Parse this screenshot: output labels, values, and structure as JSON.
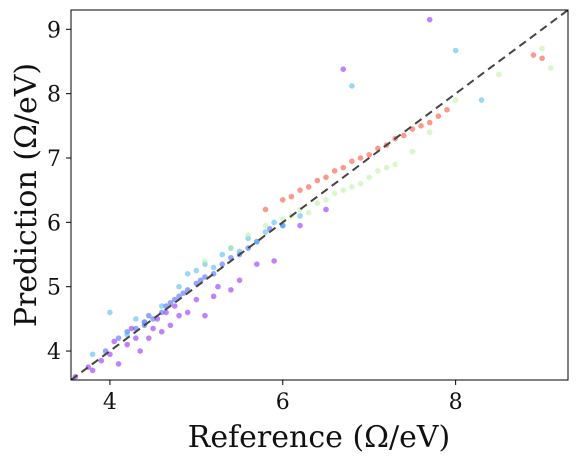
{
  "chart_data": {
    "type": "scatter",
    "title": "",
    "xlabel": "Reference (Ω/eV)",
    "ylabel": "Prediction (Ω/eV)",
    "xlim": [
      3.55,
      9.3
    ],
    "ylim": [
      3.55,
      9.3
    ],
    "xticks": [
      "4",
      "6",
      "8"
    ],
    "yticks": [
      "4",
      "5",
      "6",
      "7",
      "8",
      "9"
    ],
    "grid": false,
    "legend": "none",
    "reference_line": {
      "style": "dashed",
      "color": "#444444",
      "x": [
        3.55,
        9.3
      ],
      "y": [
        3.55,
        9.3
      ]
    },
    "colors": {
      "marker_alpha": 0.55
    },
    "series": [
      {
        "color": "#8b1cf5",
        "x": [
          3.6,
          3.75,
          3.8,
          3.9,
          4.0,
          4.05,
          4.1,
          4.2,
          4.25,
          4.3,
          4.35,
          4.4,
          4.45,
          4.5,
          4.55,
          4.6,
          4.65,
          4.7,
          4.75,
          4.8,
          4.9,
          5.0,
          5.1,
          5.2,
          5.25,
          5.4,
          5.5,
          5.7,
          5.9,
          6.2,
          6.5,
          6.7,
          7.7
        ],
        "y": [
          3.6,
          3.75,
          3.7,
          3.85,
          3.95,
          4.15,
          3.8,
          4.1,
          4.35,
          4.2,
          4.0,
          4.45,
          4.2,
          4.35,
          4.5,
          4.3,
          4.6,
          4.4,
          4.7,
          4.55,
          4.6,
          4.8,
          4.55,
          4.85,
          5.0,
          4.95,
          5.1,
          5.35,
          5.4,
          5.95,
          6.2,
          8.38,
          9.15
        ]
      },
      {
        "color": "#3b5cf7",
        "x": [
          3.95,
          4.1,
          4.2,
          4.3,
          4.4,
          4.45,
          4.5,
          4.6,
          4.65,
          4.7,
          4.75,
          4.8,
          4.85,
          4.9,
          5.0,
          5.05,
          5.1,
          5.2,
          5.3,
          5.4,
          5.5,
          5.6,
          5.7,
          5.85,
          6.0
        ],
        "y": [
          4.0,
          4.2,
          4.3,
          4.35,
          4.4,
          4.55,
          4.5,
          4.6,
          4.7,
          4.75,
          4.8,
          4.85,
          4.9,
          4.95,
          5.05,
          5.1,
          5.15,
          5.2,
          5.35,
          5.45,
          5.5,
          5.6,
          5.7,
          5.9,
          5.95
        ]
      },
      {
        "color": "#45b4f2",
        "x": [
          3.8,
          4.0,
          4.2,
          4.3,
          4.4,
          4.6,
          4.8,
          4.9,
          5.0,
          5.1,
          5.2,
          5.3,
          5.4,
          5.5,
          5.6,
          5.7,
          5.8,
          5.9,
          6.0,
          6.2,
          6.8,
          8.0,
          8.3
        ],
        "y": [
          3.95,
          4.6,
          4.25,
          4.5,
          4.45,
          4.7,
          5.0,
          5.2,
          5.25,
          5.35,
          5.3,
          5.5,
          5.6,
          5.55,
          5.75,
          5.7,
          5.85,
          6.0,
          5.95,
          6.1,
          8.12,
          8.67,
          7.9
        ]
      },
      {
        "color": "#b8f0a0",
        "x": [
          5.1,
          5.4,
          5.6,
          5.8,
          6.0,
          6.1,
          6.2,
          6.3,
          6.4,
          6.5,
          6.6,
          6.7,
          6.8,
          6.9,
          7.0,
          7.1,
          7.2,
          7.3,
          7.5,
          7.7,
          8.0,
          8.5,
          9.0,
          9.1
        ],
        "y": [
          5.4,
          5.6,
          5.8,
          5.95,
          6.05,
          6.1,
          6.2,
          6.15,
          6.3,
          6.35,
          6.45,
          6.5,
          6.55,
          6.6,
          6.7,
          6.8,
          6.85,
          6.9,
          7.1,
          7.4,
          7.9,
          8.3,
          8.7,
          8.4
        ]
      },
      {
        "color": "#f8452a",
        "x": [
          5.8,
          6.0,
          6.1,
          6.2,
          6.3,
          6.4,
          6.5,
          6.6,
          6.7,
          6.8,
          6.9,
          7.0,
          7.1,
          7.2,
          7.3,
          7.4,
          7.5,
          7.6,
          7.7,
          7.8,
          7.9,
          8.9,
          9.0
        ],
        "y": [
          6.2,
          6.35,
          6.4,
          6.5,
          6.55,
          6.65,
          6.7,
          6.8,
          6.85,
          6.95,
          7.0,
          7.05,
          7.15,
          7.2,
          7.3,
          7.35,
          7.45,
          7.5,
          7.55,
          7.65,
          7.75,
          8.6,
          8.55
        ]
      }
    ]
  }
}
